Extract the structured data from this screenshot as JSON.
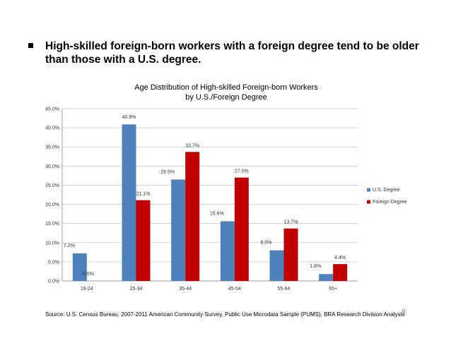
{
  "headline": {
    "text": "High-skilled foreign-born workers with a foreign degree tend to be older than those with a U.S. degree."
  },
  "chart_data": {
    "type": "bar",
    "title": "Age Distribution of High-skilled Foreign-born Workers",
    "subtitle": "by U.S./Foreign Degree",
    "categories": [
      "19-24",
      "25-34",
      "35-44",
      "45-54",
      "55-64",
      "65+"
    ],
    "series": [
      {
        "name": "U.S. Degree",
        "color": "#4F81BD",
        "values": [
          7.2,
          40.9,
          26.5,
          15.6,
          8.0,
          1.8
        ],
        "labels": [
          "7.2%",
          "40.9%",
          "26.5%",
          "15.6%",
          "8.0%",
          "1.8%"
        ]
      },
      {
        "name": "Foreign Degree",
        "color": "#C00000",
        "values": [
          0.0,
          21.1,
          33.7,
          27.0,
          13.7,
          4.4
        ],
        "labels": [
          "0.0%",
          "21.1%",
          "33.7%",
          "27.0%",
          "13.7%",
          "4.4%"
        ]
      }
    ],
    "ylim": [
      0,
      45
    ],
    "yticks": [
      "0.0%",
      "5.0%",
      "10.0%",
      "15.0%",
      "20.0%",
      "25.0%",
      "30.0%",
      "35.0%",
      "40.0%",
      "45.0%"
    ],
    "grid": true,
    "legend": "right"
  },
  "footer": {
    "source": "Source: U.S. Census Bureau, 2007-2011 American Community Survey, Public Use Microdata Sample (PUMS), BRA Research Division Analysis",
    "page_number": "8"
  }
}
